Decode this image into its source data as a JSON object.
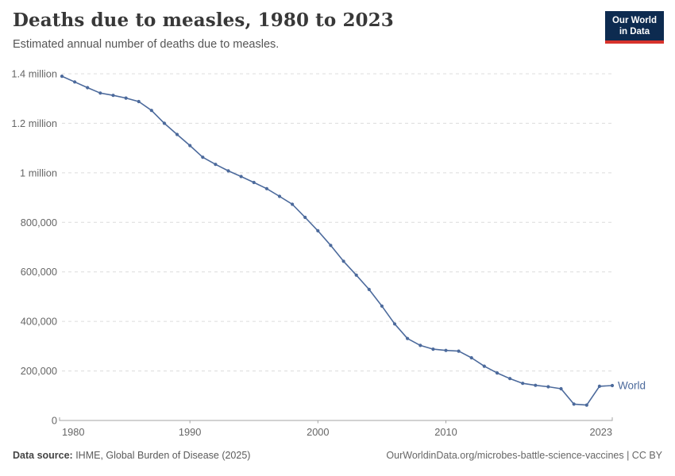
{
  "header": {
    "title": "Deaths due to measles, 1980 to 2023",
    "subtitle": "Estimated annual number of deaths due to measles.",
    "logo": {
      "line1": "Our World",
      "line2": "in Data"
    }
  },
  "footer": {
    "data_source_label": "Data source:",
    "data_source_value": " IHME, Global Burden of Disease (2025)",
    "attribution": "OurWorldinData.org/microbes-battle-science-vaccines | CC BY"
  },
  "colors": {
    "line": "#4C6A9C",
    "grid": "#dcdcdc",
    "axis": "#a3a3a3",
    "tick_text": "#666666",
    "series_label": "#4C6A9C"
  },
  "chart_data": {
    "type": "line",
    "title": "Deaths due to measles, 1980 to 2023",
    "subtitle": "Estimated annual number of deaths due to measles.",
    "xlabel": "",
    "ylabel": "",
    "xlim": [
      1980,
      2023
    ],
    "ylim": [
      0,
      1400000
    ],
    "grid": "horizontal-dashed",
    "legend_position": "end-of-line",
    "marker": "circle",
    "xticks": [
      {
        "value": 1980,
        "label": "1980",
        "align": "start"
      },
      {
        "value": 1990,
        "label": "1990",
        "align": "middle"
      },
      {
        "value": 2000,
        "label": "2000",
        "align": "middle"
      },
      {
        "value": 2010,
        "label": "2010",
        "align": "middle"
      },
      {
        "value": 2023,
        "label": "2023",
        "align": "end"
      }
    ],
    "yticks": [
      {
        "value": 0,
        "label": "0"
      },
      {
        "value": 200000,
        "label": "200,000"
      },
      {
        "value": 400000,
        "label": "400,000"
      },
      {
        "value": 600000,
        "label": "600,000"
      },
      {
        "value": 800000,
        "label": "800,000"
      },
      {
        "value": 1000000,
        "label": "1 million"
      },
      {
        "value": 1200000,
        "label": "1.2 million"
      },
      {
        "value": 1400000,
        "label": "1.4 million"
      }
    ],
    "x": [
      1980,
      1981,
      1982,
      1983,
      1984,
      1985,
      1986,
      1987,
      1988,
      1989,
      1990,
      1991,
      1992,
      1993,
      1994,
      1995,
      1996,
      1997,
      1998,
      1999,
      2000,
      2001,
      2002,
      2003,
      2004,
      2005,
      2006,
      2007,
      2008,
      2009,
      2010,
      2011,
      2012,
      2013,
      2014,
      2015,
      2016,
      2017,
      2018,
      2019,
      2020,
      2021,
      2022,
      2023
    ],
    "series": [
      {
        "name": "World",
        "color": "#4C6A9C",
        "values": [
          1390000,
          1367000,
          1344000,
          1322000,
          1313000,
          1302000,
          1288000,
          1252000,
          1200000,
          1155000,
          1110000,
          1063000,
          1034000,
          1008000,
          985000,
          961000,
          936000,
          905000,
          873000,
          820000,
          766000,
          707000,
          643000,
          587000,
          529000,
          462000,
          390000,
          331000,
          303000,
          288000,
          283000,
          280000,
          253000,
          219000,
          192000,
          169000,
          150000,
          142000,
          136000,
          128000,
          66000,
          62000,
          138000,
          141000
        ]
      }
    ]
  }
}
